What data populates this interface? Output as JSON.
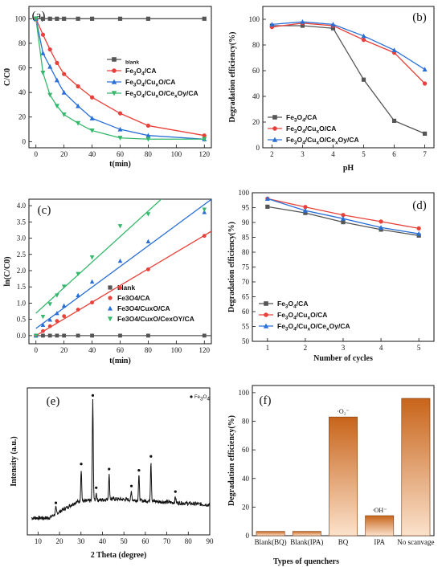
{
  "colors": {
    "blank": "#555555",
    "fe3o4": "#e8403a",
    "cuxo": "#2a6fd6",
    "cexoy": "#35b86b",
    "bar_top": "#c8641a",
    "bar_bottom": "#fbe2cc"
  },
  "chart_data": [
    {
      "panel": "(a)",
      "type": "line",
      "xlabel": "t(min)",
      "ylabel": "C/C0",
      "xlim": [
        -5,
        125
      ],
      "ylim": [
        -5,
        110
      ],
      "xticks": [
        0,
        20,
        40,
        60,
        80,
        100,
        120
      ],
      "yticks": [
        0,
        20,
        40,
        60,
        80,
        100
      ],
      "legend_position": "right",
      "x": [
        0,
        5,
        10,
        15,
        20,
        30,
        40,
        60,
        80,
        120
      ],
      "series": [
        {
          "name": "blank",
          "color_key": "blank",
          "marker": "square",
          "values": [
            100,
            100,
            100,
            100,
            100,
            100,
            100,
            100,
            100,
            100
          ]
        },
        {
          "name": "Fe3O4/CA",
          "color_key": "fe3o4",
          "marker": "circle",
          "values": [
            100,
            87,
            75,
            64,
            55,
            45,
            36,
            23,
            13,
            5
          ]
        },
        {
          "name": "Fe3O4/CuxO/CA",
          "color_key": "cuxo",
          "marker": "triangle",
          "values": [
            100,
            72,
            61,
            50,
            40,
            29,
            19,
            10,
            5,
            2
          ]
        },
        {
          "name": "Fe3O4/CuxO/CexOy/CA",
          "color_key": "cexoy",
          "marker": "triangle-down",
          "values": [
            100,
            56,
            38,
            29,
            22,
            15,
            9,
            3,
            2,
            2
          ]
        }
      ]
    },
    {
      "panel": "(b)",
      "type": "line",
      "xlabel": "pH",
      "ylabel": "Degradation efficiency(%)",
      "xlim": [
        1.7,
        7.3
      ],
      "ylim": [
        0,
        110
      ],
      "xticks": [
        2,
        3,
        4,
        5,
        6,
        7
      ],
      "yticks": [
        0,
        20,
        40,
        60,
        80,
        100
      ],
      "legend_position": "lower-left",
      "x": [
        2,
        3,
        4,
        5,
        6,
        7
      ],
      "series": [
        {
          "name": "Fe3O4/CA",
          "color_key": "blank",
          "marker": "square",
          "values": [
            95,
            95,
            93,
            53,
            21,
            11
          ]
        },
        {
          "name": "Fe3O4/CuxO/CA",
          "color_key": "fe3o4",
          "marker": "circle",
          "values": [
            94,
            97,
            95,
            84,
            74,
            50
          ]
        },
        {
          "name": "Fe3O4/CuxO/CexOy/CA",
          "color_key": "cuxo",
          "marker": "triangle",
          "values": [
            96,
            98,
            96,
            87,
            76,
            61
          ]
        }
      ]
    },
    {
      "panel": "(c)",
      "type": "scatter",
      "xlabel": "t(min)",
      "ylabel": "ln(C/C0)",
      "xlim": [
        -5,
        125
      ],
      "ylim": [
        -0.25,
        4.2
      ],
      "xticks": [
        0,
        20,
        40,
        60,
        80,
        100,
        120
      ],
      "yticks": [
        0.0,
        0.5,
        1.0,
        1.5,
        2.0,
        2.5,
        3.0,
        3.5,
        4.0
      ],
      "legend_position": "right",
      "x": [
        0,
        5,
        10,
        15,
        20,
        30,
        40,
        60,
        80,
        120
      ],
      "series": [
        {
          "name": "blank",
          "color_key": "blank",
          "marker": "square",
          "values": [
            0,
            0,
            0,
            0,
            0,
            0,
            0,
            0,
            0,
            0
          ],
          "fit": [
            0,
            0
          ]
        },
        {
          "name": "Fe3O4/CA",
          "color_key": "fe3o4",
          "marker": "circle",
          "values": [
            0,
            0.14,
            0.29,
            0.45,
            0.6,
            0.8,
            1.02,
            1.47,
            2.04,
            3.07
          ],
          "fit": [
            0.0,
            0.0257
          ]
        },
        {
          "name": "Fe3O4/CuxO/CA",
          "color_key": "cuxo",
          "marker": "triangle",
          "values": [
            0,
            0.33,
            0.49,
            0.69,
            0.92,
            1.24,
            1.66,
            2.3,
            2.9,
            3.8
          ],
          "fit": [
            0.22,
            0.0318
          ]
        },
        {
          "name": "Fe3O4/CuxO/CexOy/CA",
          "color_key": "cexoy",
          "marker": "triangle-down",
          "values": [
            0,
            0.58,
            0.97,
            1.24,
            1.51,
            1.9,
            2.41,
            3.37,
            3.74,
            3.88
          ],
          "fit": [
            0.69,
            0.0393
          ]
        }
      ],
      "legend_names": [
        "blank",
        "Fe3O4/CA",
        "Fe3O4/CuxO/CA",
        "Fe3O4/CuxO/CexOY/CA"
      ]
    },
    {
      "panel": "(d)",
      "type": "line",
      "xlabel": "Number of cycles",
      "ylabel": "Degradation efficiency(%)",
      "xlim": [
        0.6,
        5.4
      ],
      "ylim": [
        50,
        100
      ],
      "xticks": [
        1,
        2,
        3,
        4,
        5
      ],
      "yticks": [
        50,
        55,
        60,
        65,
        70,
        75,
        80,
        85,
        90,
        95,
        100
      ],
      "legend_position": "lower-left",
      "x": [
        1,
        2,
        3,
        4,
        5
      ],
      "series": [
        {
          "name": "Fe3O4/CA",
          "color_key": "blank",
          "marker": "square",
          "values": [
            95.3,
            93.2,
            90.1,
            87.6,
            85.6
          ]
        },
        {
          "name": "Fe3O4/CuxO/CA",
          "color_key": "fe3o4",
          "marker": "circle",
          "values": [
            98.0,
            95.2,
            92.5,
            90.3,
            88.0
          ]
        },
        {
          "name": "Fe3O4/CuxO/CexOy/CA",
          "color_key": "cuxo",
          "marker": "triangle",
          "values": [
            98.0,
            94.0,
            91.3,
            88.3,
            86.2
          ]
        }
      ]
    },
    {
      "panel": "(e)",
      "type": "line",
      "xlabel": "2 Theta (degree)",
      "ylabel": "Intensity (a.u.)",
      "xlim": [
        5,
        90
      ],
      "ylim": [
        0,
        100
      ],
      "xticks": [
        10,
        20,
        30,
        40,
        50,
        60,
        70,
        80,
        90
      ],
      "legend_position": "top-right",
      "legend": "Fe3O4",
      "peaks": [
        {
          "x": 18.3,
          "height": 4
        },
        {
          "x": 30.1,
          "height": 22
        },
        {
          "x": 35.5,
          "height": 68
        },
        {
          "x": 37.1,
          "height": 5
        },
        {
          "x": 43.1,
          "height": 17
        },
        {
          "x": 53.5,
          "height": 6
        },
        {
          "x": 57.0,
          "height": 17
        },
        {
          "x": 62.6,
          "height": 27
        },
        {
          "x": 74.0,
          "height": 4
        }
      ]
    },
    {
      "panel": "(f)",
      "type": "bar",
      "xlabel": "Types of quenchers",
      "ylabel": "Degradation efficiency(%)",
      "ylim": [
        0,
        105
      ],
      "yticks": [
        0,
        20,
        40,
        60,
        80,
        100
      ],
      "categories": [
        "Blank(BQ)",
        "Blank(IPA)",
        "BQ",
        "IPA",
        "No scanvage"
      ],
      "values": [
        3,
        3,
        83,
        14,
        96
      ],
      "bar_labels": [
        "",
        "",
        "·O₂⁻",
        "·OH⁻",
        ""
      ]
    }
  ]
}
